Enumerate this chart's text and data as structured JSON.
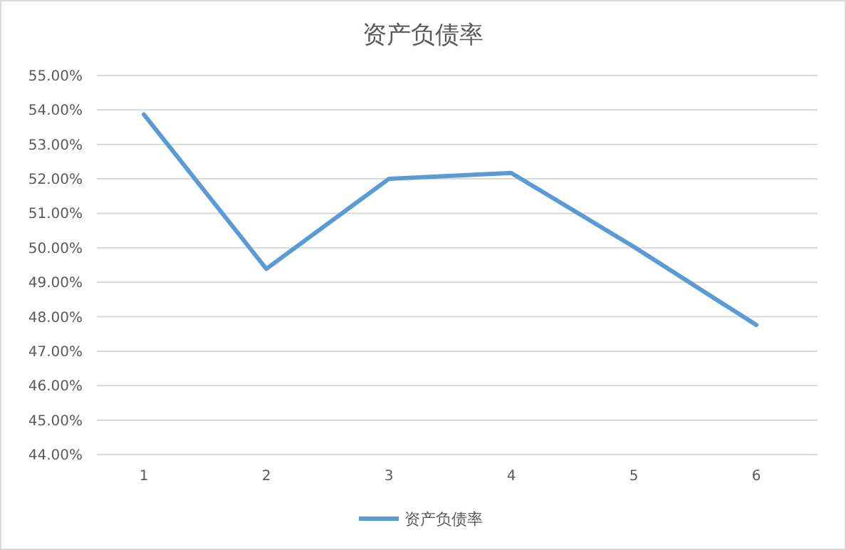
{
  "chart_data": {
    "type": "line",
    "title": "资产负债率",
    "categories": [
      "1",
      "2",
      "3",
      "4",
      "5",
      "6"
    ],
    "series": [
      {
        "name": "资产负债率",
        "color": "#5b9bd5",
        "values": [
          53.87,
          49.39,
          52.0,
          52.17,
          50.03,
          47.76
        ]
      }
    ],
    "ylim": [
      44,
      55
    ],
    "yticks": [
      {
        "value": 44,
        "label": "44.00%"
      },
      {
        "value": 45,
        "label": "45.00%"
      },
      {
        "value": 46,
        "label": "46.00%"
      },
      {
        "value": 47,
        "label": "47.00%"
      },
      {
        "value": 48,
        "label": "48.00%"
      },
      {
        "value": 49,
        "label": "49.00%"
      },
      {
        "value": 50,
        "label": "50.00%"
      },
      {
        "value": 51,
        "label": "51.00%"
      },
      {
        "value": 52,
        "label": "52.00%"
      },
      {
        "value": 53,
        "label": "53.00%"
      },
      {
        "value": 54,
        "label": "54.00%"
      },
      {
        "value": 55,
        "label": "55.00%"
      }
    ],
    "grid": "y",
    "legend": "bottom",
    "marker": "none",
    "line_style": "solid"
  }
}
